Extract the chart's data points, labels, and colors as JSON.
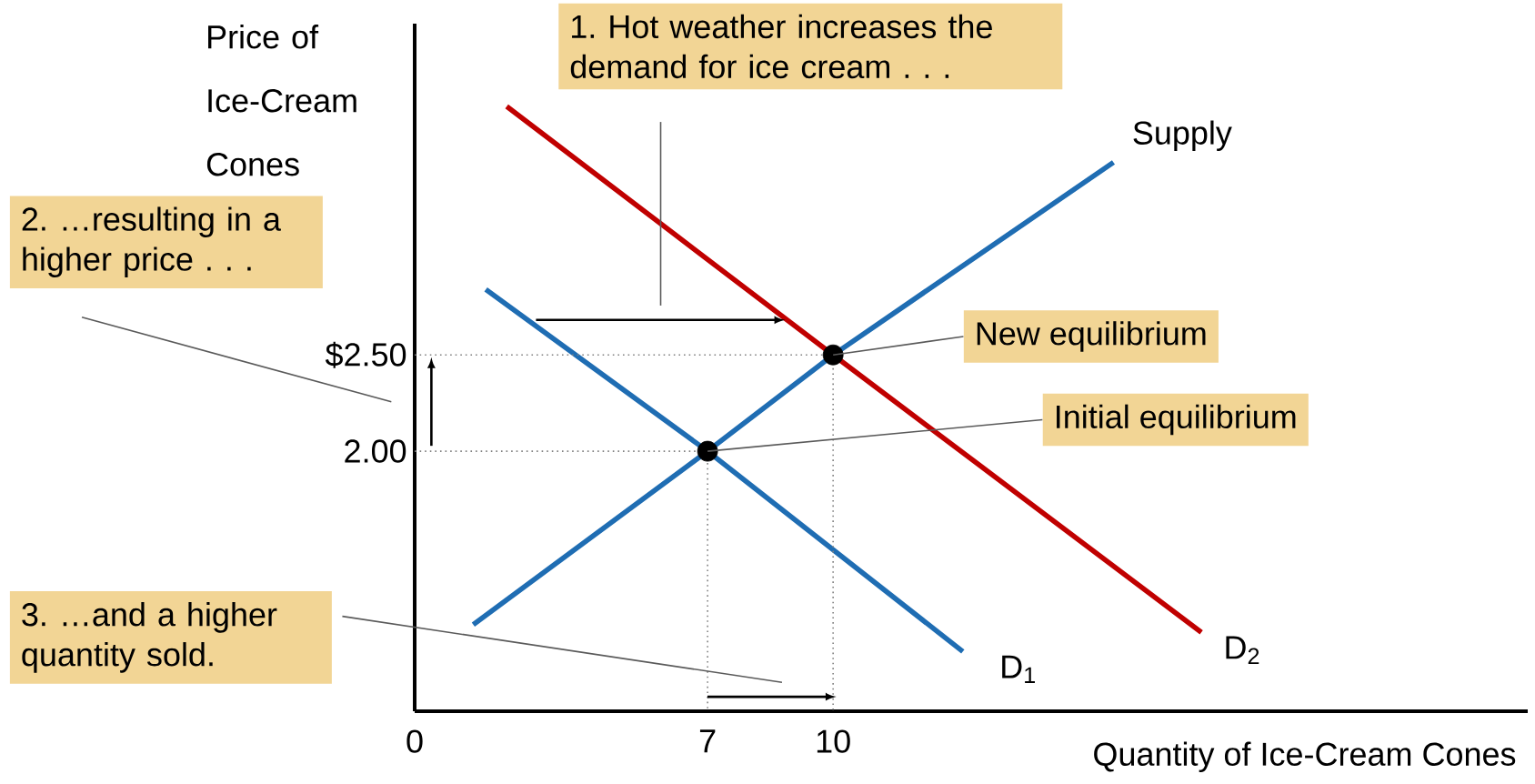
{
  "chart_data": {
    "type": "line",
    "xlabel": "Quantity of Ice-Cream Cones",
    "ylabel": "Price of Ice-Cream Cones",
    "xlim": [
      0,
      26.6
    ],
    "ylim": [
      0.65,
      4.22
    ],
    "xticks": [
      0,
      7,
      10
    ],
    "yticks": [
      {
        "value": 2,
        "label": "2.00"
      },
      {
        "value": 2.5,
        "label": "$2.50"
      }
    ],
    "grid": false,
    "legend": false,
    "marker": "none",
    "series": [
      {
        "name": "Supply",
        "color": "#1f6db3",
        "x": [
          1.4,
          7,
          10,
          16.7
        ],
        "values": [
          1.1,
          2,
          2.5,
          3.5
        ]
      },
      {
        "name": "D$_{1}$",
        "color": "#1f6db3",
        "x": [
          1.7,
          7,
          13.1
        ],
        "values": [
          2.84,
          2,
          0.96
        ]
      },
      {
        "name": "D$_{2}$",
        "color": "#c00000",
        "x": [
          2.2,
          10,
          18.8
        ],
        "values": [
          3.79,
          2.5,
          1.06
        ]
      },
      {
        "type": "scatter",
        "color": "#000000",
        "marker": "circle",
        "x": [
          7,
          10
        ],
        "values": [
          2,
          2.5
        ]
      },
      {
        "color": "#808080",
        "line_style": "dotted",
        "x": [
          0,
          10,
          10
        ],
        "values": [
          2.5,
          2.5,
          0.65
        ]
      },
      {
        "color": "#808080",
        "line_style": "dotted",
        "x": [
          0,
          7,
          7
        ],
        "values": [
          2,
          2,
          0.65
        ]
      }
    ],
    "annotations": [
      "1. Hot weather increases the demand for ice cream . . .",
      "2. …resulting in a higher price . . .",
      "3. …and a higher quantity sold.",
      {
        "text": "New equilibrium",
        "x": 10,
        "y": 2.5
      },
      {
        "text": "Initial equilibrium",
        "x": 7,
        "y": 2
      }
    ]
  }
}
